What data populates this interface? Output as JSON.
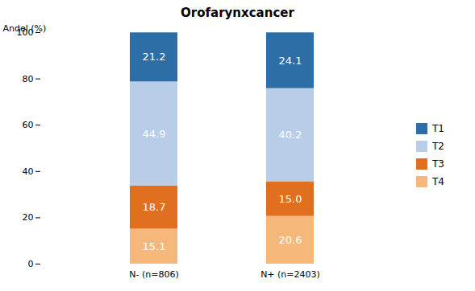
{
  "chart_data": {
    "type": "bar",
    "title": "Orofarynxcancer",
    "ylabel": "Andel (%)",
    "categories": [
      "N- (n=806)",
      "N+ (n=2403)"
    ],
    "series": [
      {
        "name": "T4",
        "color": "#F5B87A",
        "values": [
          15.1,
          20.6
        ],
        "value_labels": [
          "15.1",
          "20.6"
        ]
      },
      {
        "name": "T3",
        "color": "#E07020",
        "values": [
          18.7,
          15.0
        ],
        "value_labels": [
          "18.7",
          "15.0"
        ]
      },
      {
        "name": "T2",
        "color": "#B8CEE8",
        "values": [
          44.9,
          40.2
        ],
        "value_labels": [
          "44.9",
          "40.2"
        ]
      },
      {
        "name": "T1",
        "color": "#2E6EA6",
        "values": [
          21.2,
          24.1
        ],
        "value_labels": [
          "21.2",
          "24.1"
        ]
      }
    ],
    "stacked": true,
    "data_labels": true,
    "ylim": [
      0,
      100
    ],
    "yticks": [
      0,
      20,
      40,
      60,
      80,
      100
    ],
    "grid": false,
    "legend": "right"
  }
}
